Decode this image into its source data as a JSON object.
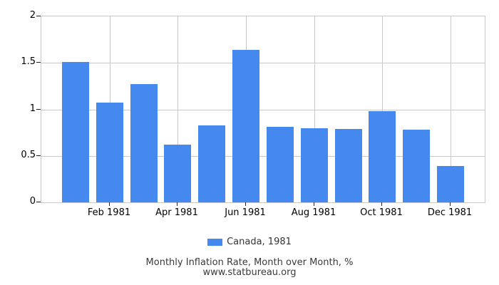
{
  "chart_data": {
    "type": "bar",
    "categories": [
      "Jan 1981",
      "Feb 1981",
      "Mar 1981",
      "Apr 1981",
      "May 1981",
      "Jun 1981",
      "Jul 1981",
      "Aug 1981",
      "Sep 1981",
      "Oct 1981",
      "Nov 1981",
      "Dec 1981"
    ],
    "values": [
      1.51,
      1.07,
      1.27,
      0.62,
      0.83,
      1.64,
      0.81,
      0.8,
      0.79,
      0.98,
      0.78,
      0.39
    ],
    "series_name": "Canada, 1981",
    "title": "Monthly Inflation Rate, Month over Month, %",
    "subtitle": "www.statbureau.org",
    "xlabel": "",
    "ylabel": "",
    "ylim": [
      0,
      2
    ],
    "y_ticks": [
      0,
      0.5,
      1,
      1.5,
      2
    ],
    "y_tick_labels": [
      "0",
      "0.5",
      "1",
      "1.5",
      "2"
    ],
    "x_tick_month_indices": [
      1,
      3,
      5,
      7,
      9,
      11
    ],
    "x_tick_labels": [
      "Feb 1981",
      "Apr 1981",
      "Jun 1981",
      "Aug 1981",
      "Oct 1981",
      "Dec 1981"
    ],
    "grid": true,
    "legend_position": "bottom",
    "bar_color": "#4589ee",
    "grid_color": "#c9c9c9"
  },
  "legend": {
    "label": "Canada, 1981"
  },
  "footer": {
    "title": "Monthly Inflation Rate, Month over Month, %",
    "source": "www.statbureau.org"
  }
}
